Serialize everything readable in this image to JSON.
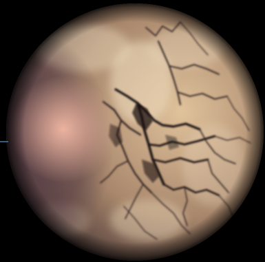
{
  "scene": {
    "subject": "planet-globe",
    "background_color": "#000000",
    "colors": {
      "sphere_light": "#e0c29b",
      "sphere_mid": "#a8876c",
      "sphere_dark": "#3a2a2e",
      "glare": "#f2b8a4",
      "shadow_tint": "#5a4048",
      "crack_dark": "#1c1214",
      "crack_mid": "#2e2022",
      "cloud": "#eedcbf",
      "limb_edge": "#4a7aa8"
    }
  }
}
